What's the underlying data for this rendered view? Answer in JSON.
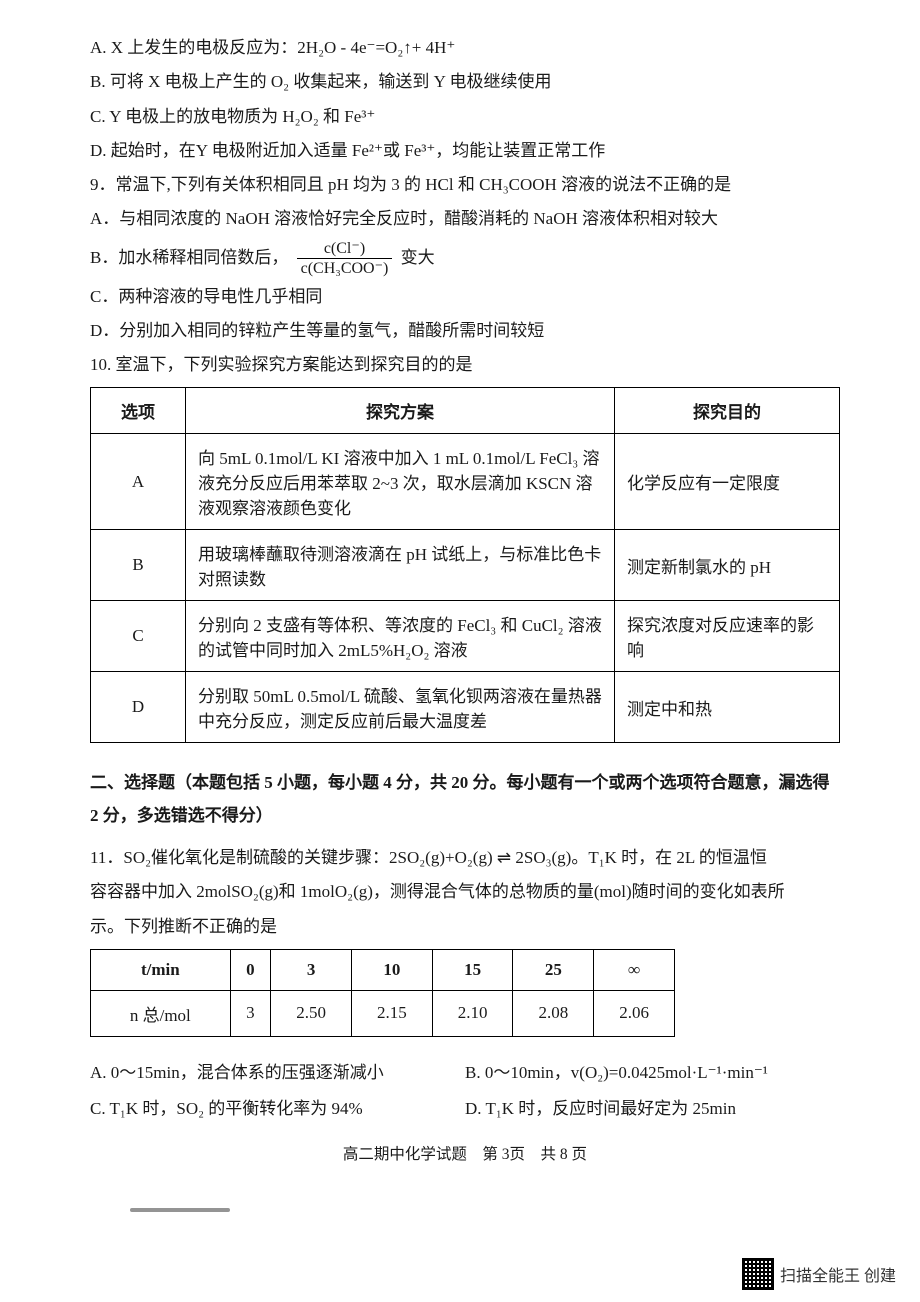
{
  "options8": {
    "A": "A. X 上发生的电极反应为：2H₂O - 4e⁻=O₂↑+ 4H⁺",
    "B": "B. 可将 X 电极上产生的 O₂ 收集起来，输送到 Y 电极继续使用",
    "C": "C. Y 电极上的放电物质为 H₂O₂ 和 Fe³⁺",
    "D": "D. 起始时，在Y 电极附近加入适量 Fe²⁺或 Fe³⁺，均能让装置正常工作"
  },
  "q9": {
    "stem": "9．常温下,下列有关体积相同且 pH 均为 3 的 HCl 和 CH₃COOH 溶液的说法不正确的是",
    "A": "A．与相同浓度的 NaOH 溶液恰好完全反应时，醋酸消耗的 NaOH 溶液体积相对较大",
    "B_prefix": "B．加水稀释相同倍数后，",
    "B_suffix": "变大",
    "B_frac_num": "c(Cl⁻)",
    "B_frac_den": "c(CH₃COO⁻)",
    "C": "C．两种溶液的导电性几乎相同",
    "D": "D．分别加入相同的锌粒产生等量的氢气，醋酸所需时间较短"
  },
  "q10": {
    "stem": "10. 室温下，下列实验探究方案能达到探究目的的是",
    "headers": [
      "选项",
      "探究方案",
      "探究目的"
    ],
    "rows": [
      {
        "opt": "A",
        "plan": "向 5mL 0.1mol/L KI 溶液中加入 1 mL 0.1mol/L FeCl₃ 溶液充分反应后用苯萃取 2~3 次，取水层滴加 KSCN 溶液观察溶液颜色变化",
        "purpose": "化学反应有一定限度"
      },
      {
        "opt": "B",
        "plan": "用玻璃棒蘸取待测溶液滴在 pH 试纸上，与标准比色卡对照读数",
        "purpose": "测定新制氯水的 pH"
      },
      {
        "opt": "C",
        "plan": "分别向 2 支盛有等体积、等浓度的 FeCl₃ 和 CuCl₂ 溶液的试管中同时加入 2mL5%H₂O₂ 溶液",
        "purpose": "探究浓度对反应速率的影响"
      },
      {
        "opt": "D",
        "plan": "分别取 50mL 0.5mol/L 硫酸、氢氧化钡两溶液在量热器中充分反应，测定反应前后最大温度差",
        "purpose": "测定中和热"
      }
    ]
  },
  "section2": {
    "title": "二、选择题（本题包括 5 小题，每小题 4 分，共 20 分。每小题有一个或两个选项符合题意，漏选得 2 分，多选错选不得分）"
  },
  "q11": {
    "stem1": "11．SO₂催化氧化是制硫酸的关键步骤：2SO₂(g)+O₂(g) ⇌ 2SO₃(g)。T₁K 时，在 2L 的恒温恒",
    "stem2": "容容器中加入 2molSO₂(g)和 1molO₂(g)，测得混合气体的总物质的量(mol)随时间的变化如表所",
    "stem3": "示。下列推断不正确的是",
    "headers": [
      "t/min",
      "0",
      "3",
      "10",
      "15",
      "25",
      "∞"
    ],
    "row_label": "n 总/mol",
    "row_vals": [
      "3",
      "2.50",
      "2.15",
      "2.10",
      "2.08",
      "2.06"
    ],
    "A": "A. 0～15min，混合体系的压强逐渐减小",
    "B": "B. 0～10min，v(O₂)=0.0425mol·L⁻¹·min⁻¹",
    "C": "C. T₁K 时，SO₂ 的平衡转化率为 94%",
    "D": "D. T₁K 时，反应时间最好定为 25min"
  },
  "footer": "高二期中化学试题　第 3页　共 8 页",
  "watermark": "扫描全能王  创建"
}
